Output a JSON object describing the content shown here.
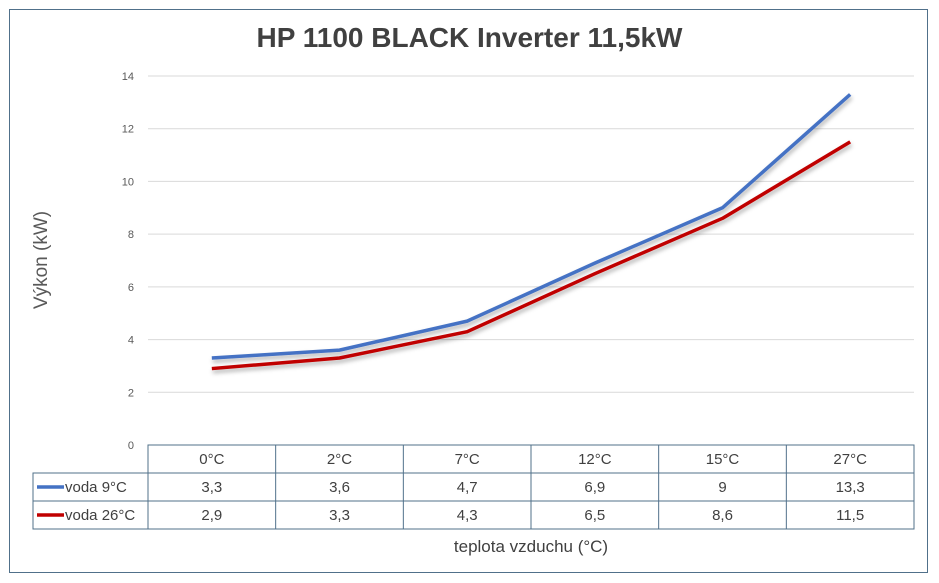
{
  "chart_data": {
    "type": "line",
    "title": "HP 1100 BLACK Inverter 11,5kW",
    "xlabel": "teplota vzduchu (°C)",
    "ylabel": "Výkon (kW)",
    "ylim": [
      0,
      14
    ],
    "yticks": [
      0,
      2,
      4,
      6,
      8,
      10,
      12,
      14
    ],
    "grid": true,
    "legend": "data-table",
    "categories": [
      "0°C",
      "2°C",
      "7°C",
      "12°C",
      "15°C",
      "27°C"
    ],
    "series": [
      {
        "name": "voda 9°C",
        "color": "#4472c4",
        "values": [
          3.3,
          3.6,
          4.7,
          6.9,
          9,
          13.3
        ],
        "labels": [
          "3,3",
          "3,6",
          "4,7",
          "6,9",
          "9",
          "13,3"
        ]
      },
      {
        "name": "voda 26°C",
        "color": "#c00000",
        "values": [
          2.9,
          3.3,
          4.3,
          6.5,
          8.6,
          11.5
        ],
        "labels": [
          "2,9",
          "3,3",
          "4,3",
          "6,5",
          "8,6",
          "11,5"
        ]
      }
    ]
  }
}
